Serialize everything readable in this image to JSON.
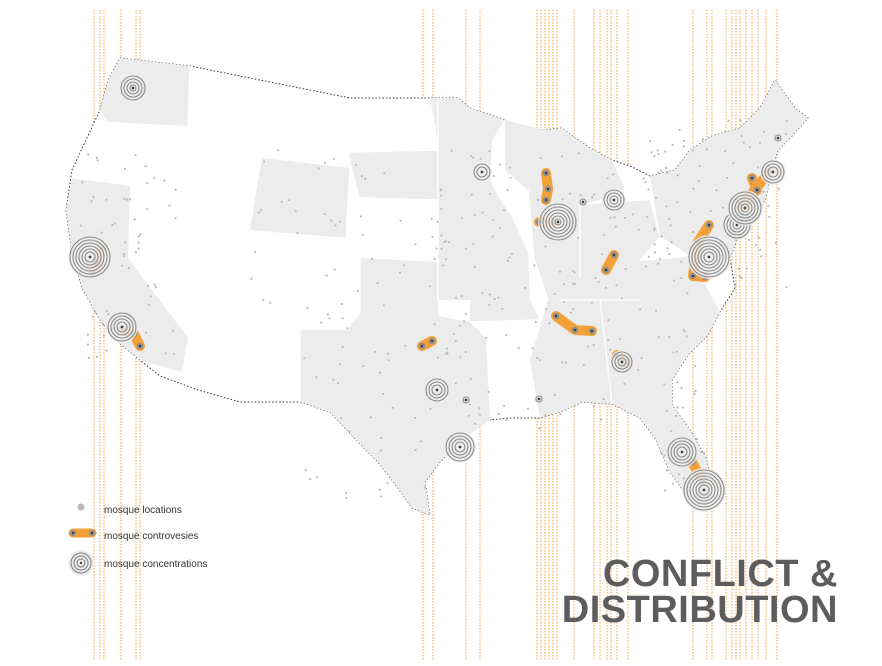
{
  "title": {
    "line1": "CONFLICT &",
    "line2": "DISTRIBUTION"
  },
  "legend": {
    "locations": "mosque locations",
    "controversies": "mosque controvesies",
    "concentrations": "mosque concentrations"
  },
  "colors": {
    "orange": "#f2a13a",
    "state_fill": "#ececec",
    "state_alt": "#f6f6f6",
    "dot": "#b9b9b9",
    "ring": "#8c8c8c",
    "title": "#5d5d5d"
  }
}
